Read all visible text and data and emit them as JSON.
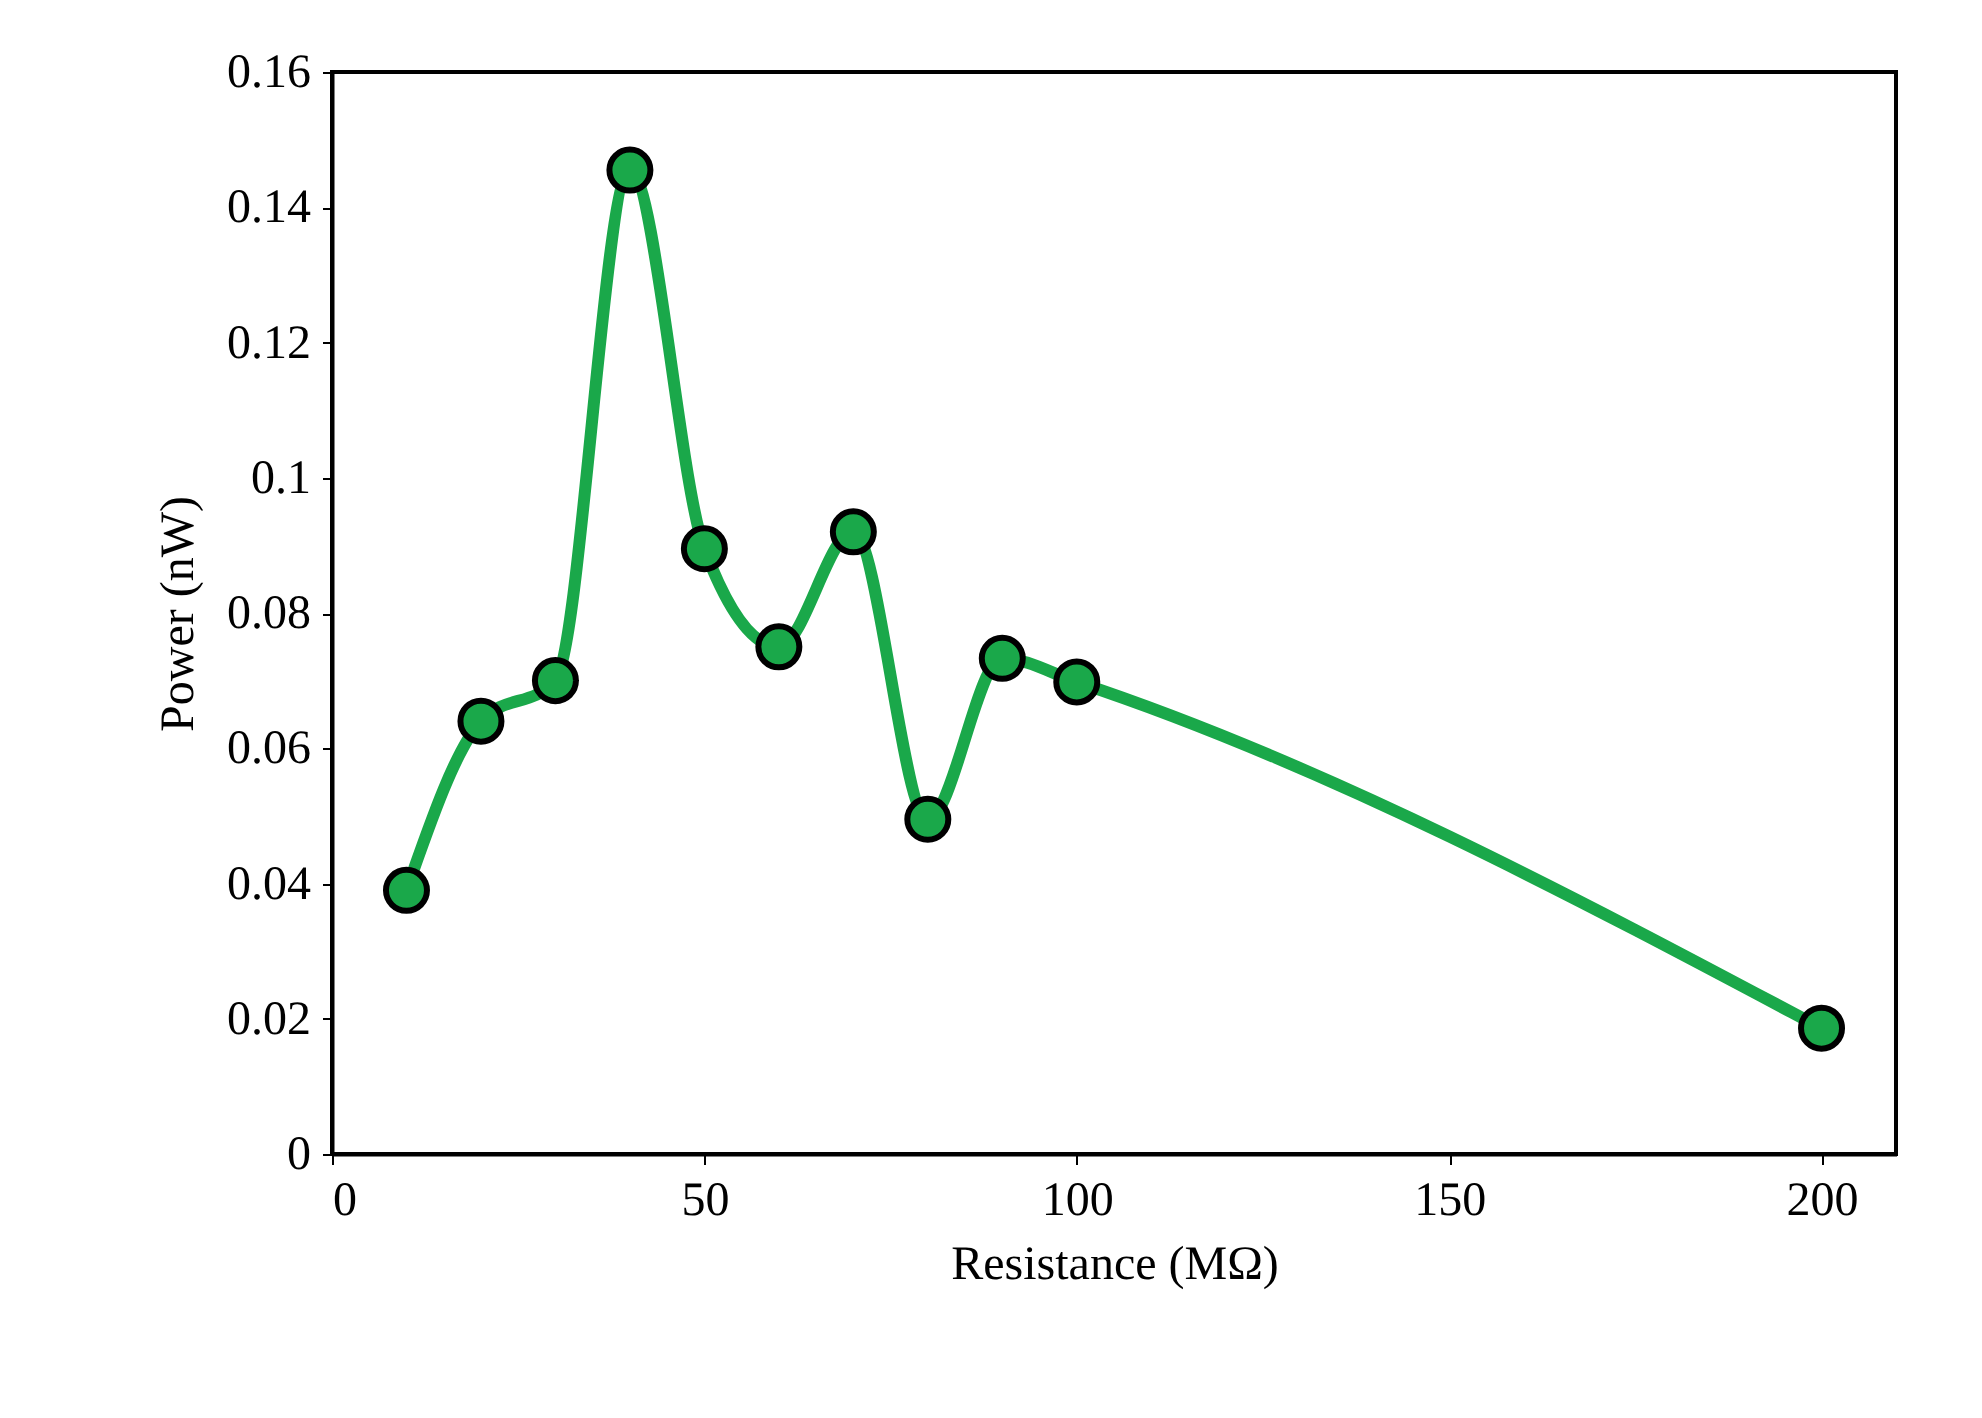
{
  "chart_data": {
    "type": "line",
    "xlabel": "Resistance (MΩ)",
    "ylabel": "Power (nW)",
    "x": [
      10,
      20,
      30,
      40,
      50,
      60,
      70,
      80,
      90,
      100,
      200
    ],
    "series": [
      {
        "color": "#1aa84a",
        "values": [
          0.039,
          0.064,
          0.07,
          0.1455,
          0.0895,
          0.075,
          0.092,
          0.0495,
          0.0733,
          0.0698,
          0.0186
        ]
      }
    ],
    "xlim": [
      0,
      210
    ],
    "xticks": [
      0,
      50,
      100,
      150,
      200
    ],
    "ylim": [
      0,
      0.16
    ],
    "yticks": [
      0,
      0.02,
      0.04,
      0.06,
      0.08,
      0.1,
      0.12,
      0.14,
      0.16
    ],
    "grid": false,
    "marker": "circle",
    "line_style": "solid"
  }
}
